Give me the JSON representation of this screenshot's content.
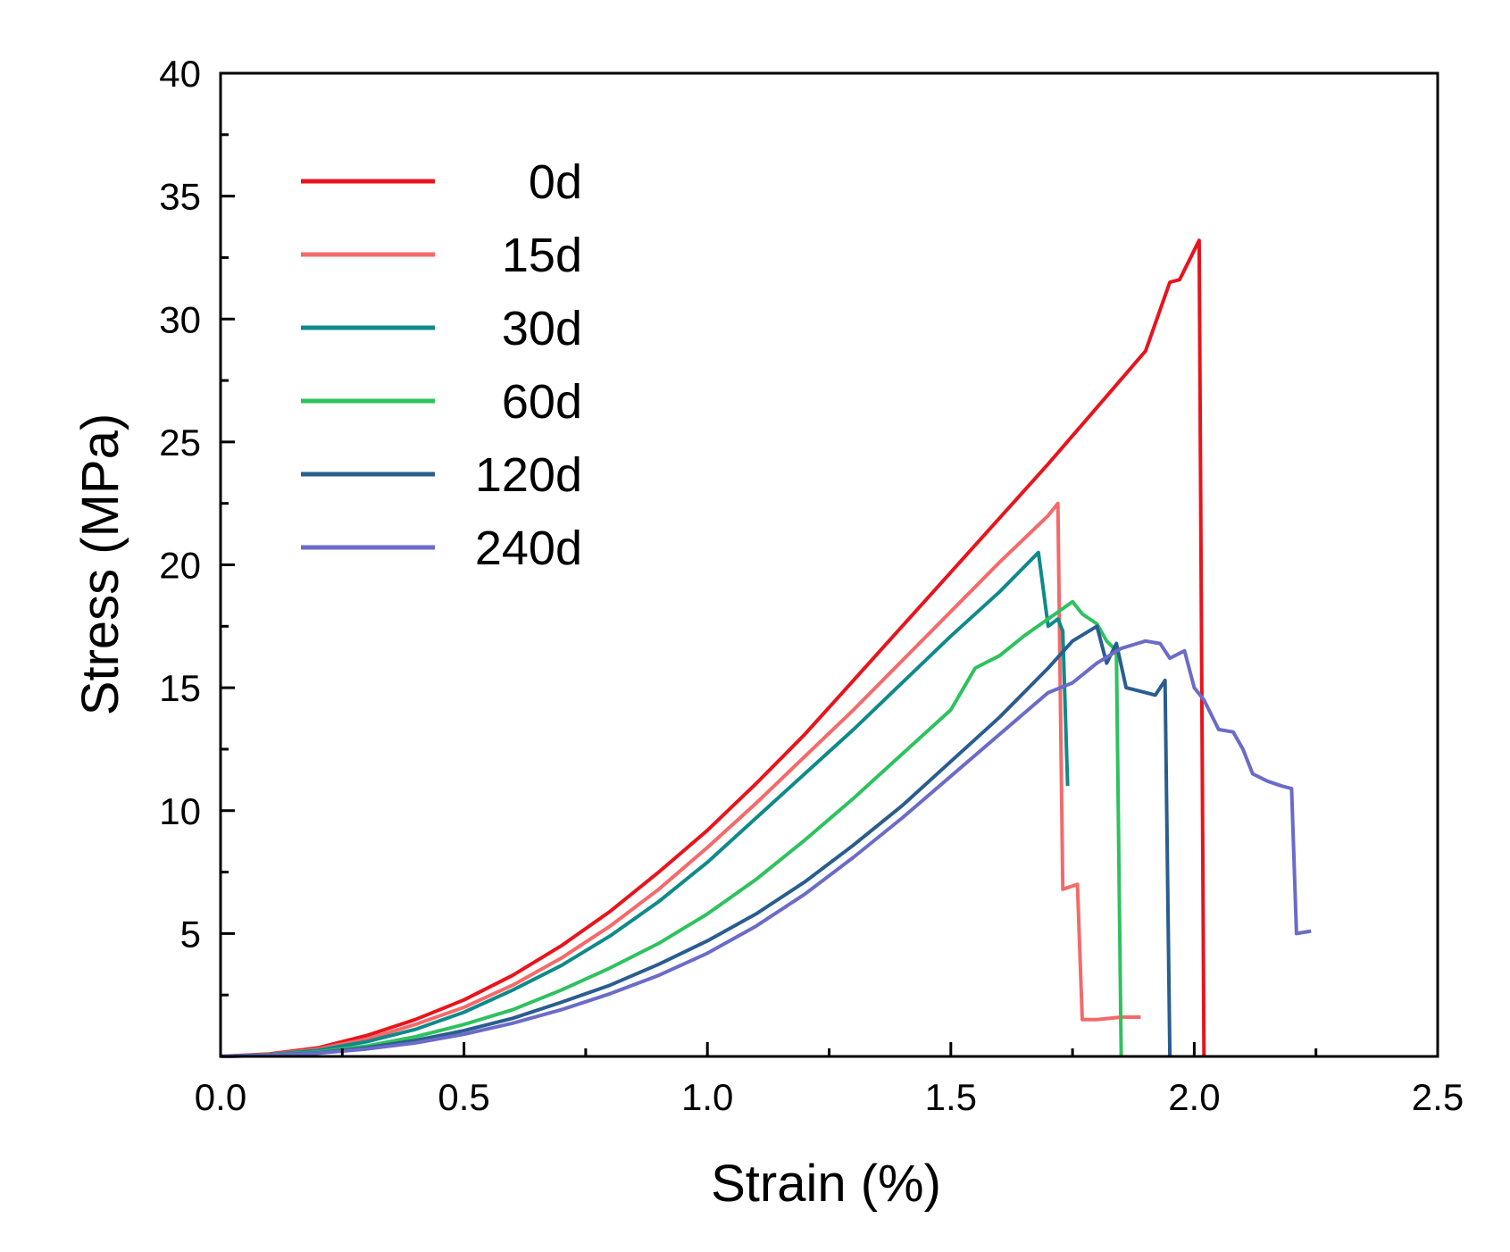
{
  "chart_data": {
    "type": "line",
    "title": "",
    "xlabel": "Strain (%)",
    "ylabel": "Stress (MPa)",
    "xlim": [
      0,
      2.5
    ],
    "ylim": [
      0,
      40
    ],
    "xticks": [
      0.0,
      0.5,
      1.0,
      1.5,
      2.0,
      2.5
    ],
    "xtick_labels": [
      "0.0",
      "0.5",
      "1.0",
      "1.5",
      "2.0",
      "2.5"
    ],
    "yticks": [
      5,
      10,
      15,
      20,
      25,
      30,
      35,
      40
    ],
    "ytick_labels": [
      "5",
      "10",
      "15",
      "20",
      "25",
      "30",
      "35",
      "40"
    ],
    "grid": false,
    "legend_position": "top-left",
    "series": [
      {
        "name": "0d",
        "color": "#e8141c",
        "points": [
          [
            0,
            0
          ],
          [
            0.1,
            0.1
          ],
          [
            0.2,
            0.35
          ],
          [
            0.3,
            0.85
          ],
          [
            0.4,
            1.5
          ],
          [
            0.5,
            2.3
          ],
          [
            0.6,
            3.3
          ],
          [
            0.7,
            4.5
          ],
          [
            0.8,
            5.9
          ],
          [
            0.9,
            7.5
          ],
          [
            1.0,
            9.2
          ],
          [
            1.1,
            11.1
          ],
          [
            1.2,
            13.1
          ],
          [
            1.3,
            15.3
          ],
          [
            1.4,
            17.5
          ],
          [
            1.5,
            19.7
          ],
          [
            1.6,
            21.9
          ],
          [
            1.7,
            24.1
          ],
          [
            1.8,
            26.4
          ],
          [
            1.9,
            28.7
          ],
          [
            1.95,
            31.5
          ],
          [
            1.97,
            31.6
          ],
          [
            2.01,
            33.2
          ],
          [
            2.02,
            0
          ]
        ]
      },
      {
        "name": "15d",
        "color": "#f46a6a",
        "points": [
          [
            0,
            0
          ],
          [
            0.1,
            0.08
          ],
          [
            0.2,
            0.3
          ],
          [
            0.3,
            0.7
          ],
          [
            0.4,
            1.3
          ],
          [
            0.5,
            2.0
          ],
          [
            0.6,
            2.9
          ],
          [
            0.7,
            4.0
          ],
          [
            0.8,
            5.3
          ],
          [
            0.9,
            6.8
          ],
          [
            1.0,
            8.5
          ],
          [
            1.1,
            10.3
          ],
          [
            1.2,
            12.2
          ],
          [
            1.3,
            14.1
          ],
          [
            1.4,
            16.1
          ],
          [
            1.5,
            18.1
          ],
          [
            1.6,
            20.1
          ],
          [
            1.7,
            22.0
          ],
          [
            1.72,
            22.5
          ],
          [
            1.73,
            6.8
          ],
          [
            1.76,
            7.0
          ],
          [
            1.77,
            1.5
          ],
          [
            1.8,
            1.5
          ],
          [
            1.85,
            1.6
          ],
          [
            1.89,
            1.6
          ]
        ]
      },
      {
        "name": "30d",
        "color": "#0f8a8a",
        "points": [
          [
            0,
            0
          ],
          [
            0.1,
            0.07
          ],
          [
            0.2,
            0.25
          ],
          [
            0.3,
            0.6
          ],
          [
            0.4,
            1.1
          ],
          [
            0.5,
            1.8
          ],
          [
            0.6,
            2.7
          ],
          [
            0.7,
            3.7
          ],
          [
            0.8,
            4.9
          ],
          [
            0.9,
            6.3
          ],
          [
            1.0,
            7.9
          ],
          [
            1.1,
            9.7
          ],
          [
            1.2,
            11.5
          ],
          [
            1.3,
            13.3
          ],
          [
            1.4,
            15.2
          ],
          [
            1.5,
            17.1
          ],
          [
            1.6,
            18.9
          ],
          [
            1.68,
            20.5
          ],
          [
            1.7,
            17.5
          ],
          [
            1.72,
            17.8
          ],
          [
            1.73,
            17.3
          ],
          [
            1.74,
            11.0
          ]
        ]
      },
      {
        "name": "60d",
        "color": "#2ec25e",
        "points": [
          [
            0,
            0
          ],
          [
            0.1,
            0.05
          ],
          [
            0.2,
            0.18
          ],
          [
            0.3,
            0.42
          ],
          [
            0.4,
            0.8
          ],
          [
            0.5,
            1.3
          ],
          [
            0.6,
            1.9
          ],
          [
            0.7,
            2.7
          ],
          [
            0.8,
            3.6
          ],
          [
            0.9,
            4.6
          ],
          [
            1.0,
            5.8
          ],
          [
            1.1,
            7.2
          ],
          [
            1.2,
            8.8
          ],
          [
            1.3,
            10.5
          ],
          [
            1.4,
            12.3
          ],
          [
            1.5,
            14.1
          ],
          [
            1.55,
            15.8
          ],
          [
            1.6,
            16.3
          ],
          [
            1.65,
            17.1
          ],
          [
            1.7,
            17.8
          ],
          [
            1.75,
            18.5
          ],
          [
            1.77,
            18.0
          ],
          [
            1.8,
            17.6
          ],
          [
            1.82,
            16.9
          ],
          [
            1.84,
            16.5
          ],
          [
            1.85,
            0
          ]
        ]
      },
      {
        "name": "120d",
        "color": "#2a5d8f",
        "points": [
          [
            0,
            0
          ],
          [
            0.1,
            0.04
          ],
          [
            0.2,
            0.15
          ],
          [
            0.3,
            0.35
          ],
          [
            0.4,
            0.65
          ],
          [
            0.5,
            1.05
          ],
          [
            0.6,
            1.55
          ],
          [
            0.7,
            2.2
          ],
          [
            0.8,
            2.9
          ],
          [
            0.9,
            3.75
          ],
          [
            1.0,
            4.7
          ],
          [
            1.1,
            5.8
          ],
          [
            1.2,
            7.1
          ],
          [
            1.3,
            8.6
          ],
          [
            1.4,
            10.2
          ],
          [
            1.5,
            12.0
          ],
          [
            1.6,
            13.8
          ],
          [
            1.65,
            14.8
          ],
          [
            1.7,
            15.8
          ],
          [
            1.75,
            16.9
          ],
          [
            1.8,
            17.5
          ],
          [
            1.82,
            16.0
          ],
          [
            1.84,
            16.8
          ],
          [
            1.86,
            15.0
          ],
          [
            1.9,
            14.8
          ],
          [
            1.92,
            14.7
          ],
          [
            1.94,
            15.3
          ],
          [
            1.95,
            0
          ]
        ]
      },
      {
        "name": "240d",
        "color": "#6b6bc8",
        "points": [
          [
            0,
            0
          ],
          [
            0.1,
            0.04
          ],
          [
            0.2,
            0.13
          ],
          [
            0.3,
            0.3
          ],
          [
            0.4,
            0.55
          ],
          [
            0.5,
            0.9
          ],
          [
            0.6,
            1.35
          ],
          [
            0.7,
            1.9
          ],
          [
            0.8,
            2.55
          ],
          [
            0.9,
            3.3
          ],
          [
            1.0,
            4.2
          ],
          [
            1.1,
            5.3
          ],
          [
            1.2,
            6.6
          ],
          [
            1.3,
            8.1
          ],
          [
            1.4,
            9.7
          ],
          [
            1.5,
            11.4
          ],
          [
            1.6,
            13.1
          ],
          [
            1.7,
            14.8
          ],
          [
            1.75,
            15.2
          ],
          [
            1.8,
            16.0
          ],
          [
            1.85,
            16.6
          ],
          [
            1.9,
            16.9
          ],
          [
            1.93,
            16.8
          ],
          [
            1.95,
            16.2
          ],
          [
            1.98,
            16.5
          ],
          [
            2.0,
            15.0
          ],
          [
            2.02,
            14.5
          ],
          [
            2.05,
            13.3
          ],
          [
            2.08,
            13.2
          ],
          [
            2.1,
            12.5
          ],
          [
            2.12,
            11.5
          ],
          [
            2.15,
            11.2
          ],
          [
            2.18,
            11.0
          ],
          [
            2.2,
            10.9
          ],
          [
            2.21,
            5.0
          ],
          [
            2.24,
            5.1
          ]
        ]
      }
    ]
  }
}
